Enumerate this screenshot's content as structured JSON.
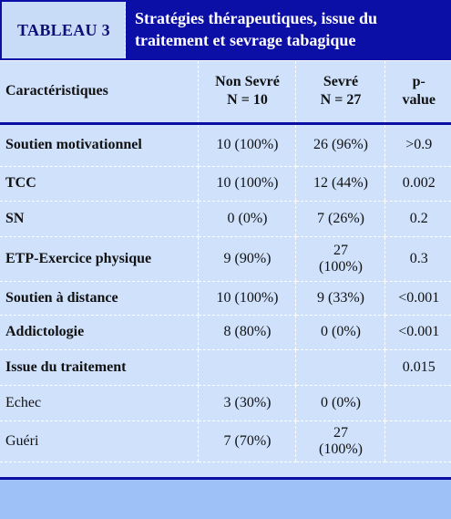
{
  "tag": "TABLEAU 3",
  "title": "Stratégies thérapeutiques, issue du traitement et sevrage tabagique",
  "headers": {
    "col1": "Caractéristiques",
    "col2_line1": "Non Sevré",
    "col2_line2": "N = 10",
    "col3_line1": "Sevré",
    "col3_line2": "N = 27",
    "col4_line1": "p-",
    "col4_line2": "value"
  },
  "rows": [
    {
      "label": "Soutien motivationnel",
      "non_sevre": "10 (100%)",
      "sevre": "26 (96%)",
      "p": ">0.9"
    },
    {
      "label": "TCC",
      "non_sevre": "10 (100%)",
      "sevre": "12 (44%)",
      "p": "0.002"
    },
    {
      "label": "SN",
      "non_sevre": "0 (0%)",
      "sevre": "7 (26%)",
      "p": "0.2"
    },
    {
      "label": "ETP-Exercice physique",
      "non_sevre": "9 (90%)",
      "sevre_line1": "27",
      "sevre_line2": "(100%)",
      "p": "0.3"
    },
    {
      "label": "Soutien à distance",
      "non_sevre": "10 (100%)",
      "sevre": "9 (33%)",
      "p": "<0.001"
    },
    {
      "label": "Addictologie",
      "non_sevre": "8 (80%)",
      "sevre": "0 (0%)",
      "p": "<0.001"
    },
    {
      "label": "Issue du traitement",
      "p": "0.015"
    },
    {
      "label": "Echec",
      "non_sevre": "3 (30%)",
      "sevre": "0 (0%)"
    },
    {
      "label": "Guéri",
      "non_sevre": "7 (70%)",
      "sevre_line1": "27",
      "sevre_line2": "(100%)"
    }
  ]
}
